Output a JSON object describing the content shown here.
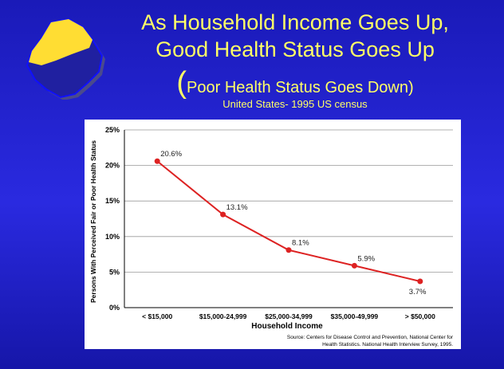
{
  "slide": {
    "title_line1": "As  Household Income Goes Up,",
    "title_line2": "Good Health Status Goes Up",
    "subtitle_paren": "(",
    "subtitle_text": "Poor Health Status Goes Down)",
    "subtitle_source": "United States- 1995 US census"
  },
  "colors": {
    "background": "#2222cc",
    "title": "#ffff66",
    "line": "#dd2222",
    "logo_island": "#ffdd33",
    "logo_shadow": "#555599"
  },
  "chart_data": {
    "type": "line",
    "categories": [
      "< $15,000",
      "$15,000-24,999",
      "$25,000-34,999",
      "$35,000-49,999",
      "> $50,000"
    ],
    "series": [
      {
        "values": [
          20.6,
          13.1,
          8.1,
          5.9,
          3.7
        ]
      }
    ],
    "data_labels": [
      "20.6%",
      "13.1%",
      "8.1%",
      "5.9%",
      "3.7%"
    ],
    "xlabel": "Household Income",
    "ylabel": "Persons With Perceived Fair or Poor Health Status",
    "ylim": [
      0,
      25
    ],
    "yticks": [
      0,
      5,
      10,
      15,
      20,
      25
    ],
    "ytick_labels": [
      "0%",
      "5%",
      "10%",
      "15%",
      "20%",
      "25%"
    ],
    "grid": true,
    "source_line1": "Source: Centers for Disease Control and Prevention, National Center for",
    "source_line2": "Health Statistics. National Health Interview Survey, 1995."
  }
}
